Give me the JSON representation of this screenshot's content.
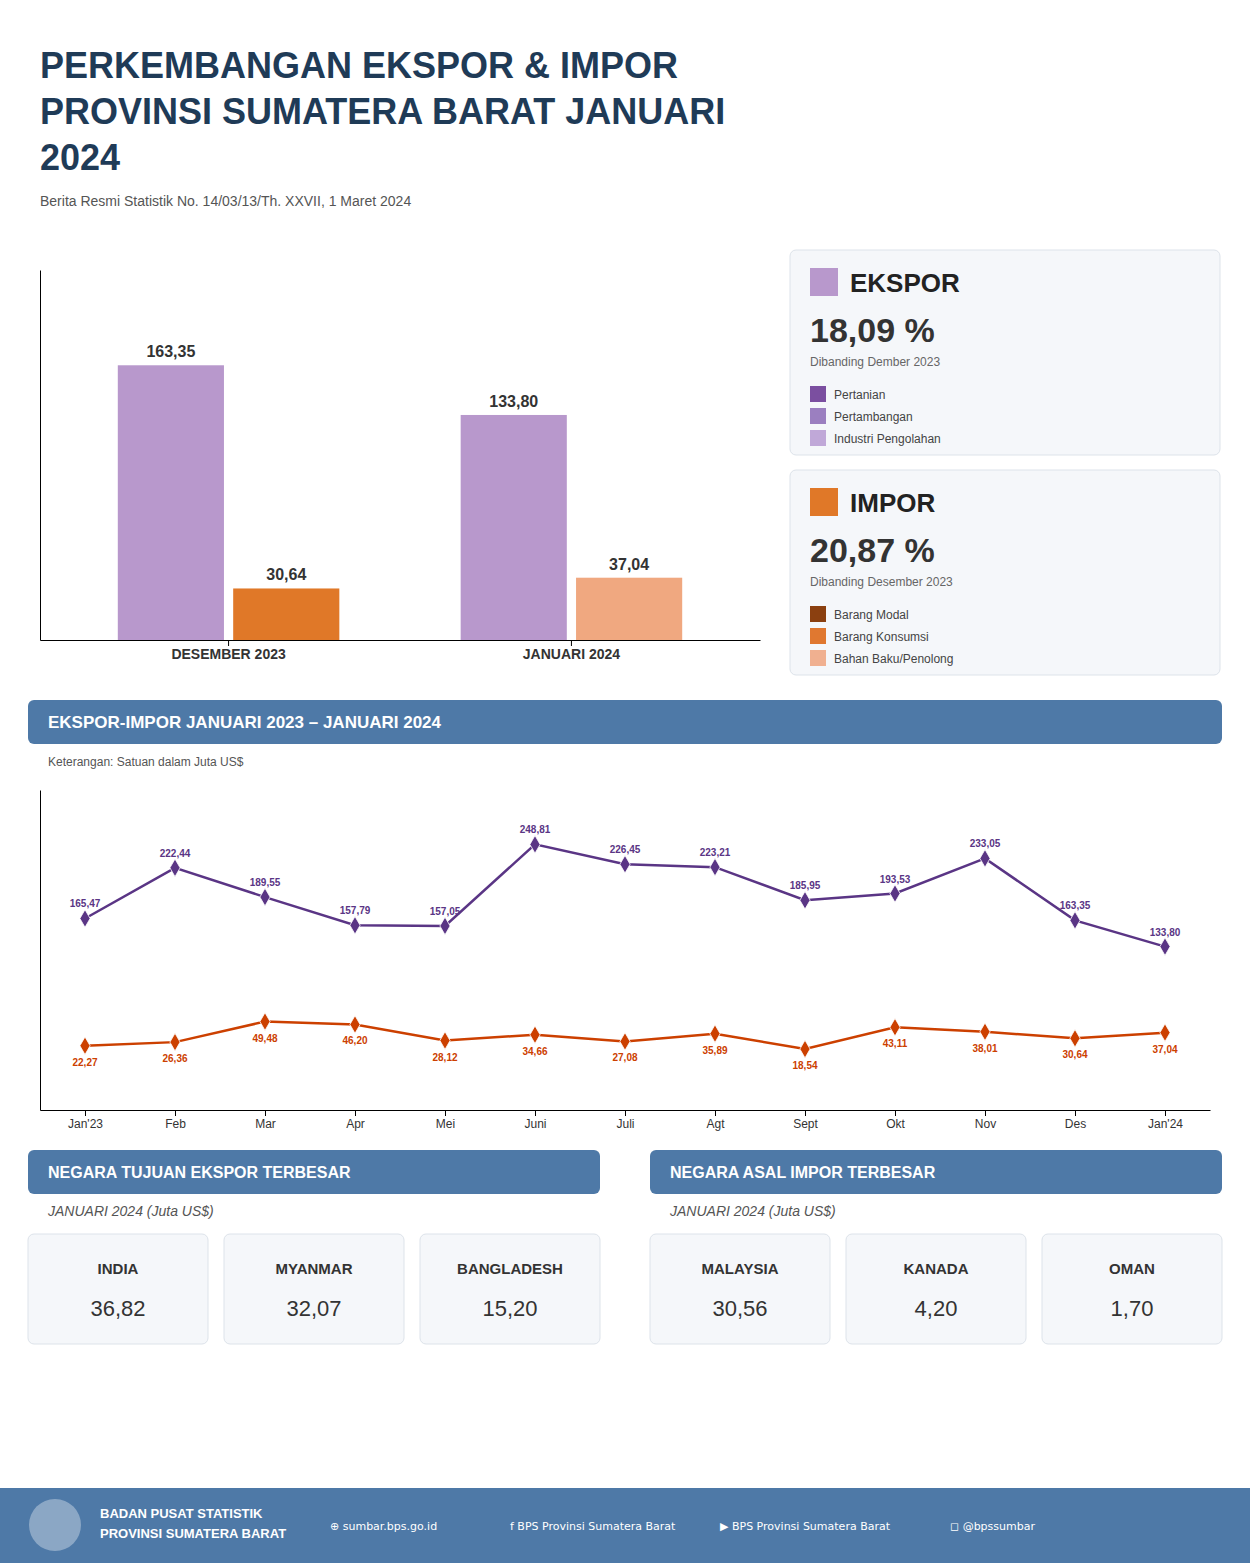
{
  "chart_data": [
    {
      "type": "bar",
      "title": "PERKEMBANGAN EKSPOR & IMPOR PROVINSI SUMATERA BARAT JANUARI 2024",
      "subtitle": "Berita Resmi Statistik No. 14/03/13/Th. XXVII, 1 Maret 2024",
      "categories": [
        "DESEMBER 2023",
        "JANUARI 2024"
      ],
      "series": [
        {
          "name": "EKSPOR",
          "color": "#b898cc",
          "values": [
            163.35,
            133.8
          ],
          "value_labels": [
            "163,35",
            "133,80"
          ]
        },
        {
          "name": "IMPOR",
          "colors": [
            "#e07828",
            "#f0a880"
          ],
          "values": [
            30.64,
            37.04
          ],
          "value_labels": [
            "30,64",
            "37,04"
          ]
        }
      ],
      "ylim": [
        0,
        220
      ],
      "tick_labels": "x",
      "data_labels": true,
      "annotations": [
        {
          "text": "18,09 %"
        },
        {
          "text": "Dibanding Dember 2023"
        },
        {
          "text": "Pertanian",
          "color": "#7b4fa0"
        },
        {
          "text": "Pertambangan",
          "color": "#9b7fc0"
        },
        {
          "text": "Industri Pengolahan",
          "color": "#c0a8d8"
        },
        {
          "text": "20,87 %"
        },
        {
          "text": "Dibanding Desember 2023"
        },
        {
          "text": "Barang Modal",
          "color": "#8b4010"
        },
        {
          "text": "Barang Konsumsi",
          "color": "#e07830"
        },
        {
          "text": "Bahan Baku/Penolong",
          "color": "#f0b090"
        }
      ]
    },
    {
      "type": "line",
      "title": "EKSPOR-IMPOR JANUARI 2023 – JANUARI 2024",
      "subtitle": "Keterangan: Satuan dalam Juta US$",
      "categories": [
        "Jan'23",
        "Feb",
        "Mar",
        "Apr",
        "Mei",
        "Juni",
        "Juli",
        "Agt",
        "Sept",
        "Okt",
        "Nov",
        "Des",
        "Jan'24"
      ],
      "series": [
        {
          "color": "#5a3585",
          "marker": "diamond",
          "values": [
            165.47,
            222.44,
            189.55,
            157.79,
            157.05,
            248.81,
            226.45,
            223.21,
            185.95,
            193.53,
            233.05,
            163.35,
            133.8
          ],
          "value_labels": [
            "165,47",
            "222,44",
            "189,55",
            "157,79",
            "157,05",
            "248,81",
            "226,45",
            "223,21",
            "185,95",
            "193,53",
            "233,05",
            "163,35",
            "133,80"
          ]
        },
        {
          "color": "#cc4000",
          "marker": "diamond",
          "values": [
            22.27,
            26.36,
            49.48,
            46.2,
            28.12,
            34.66,
            27.08,
            35.89,
            18.54,
            43.11,
            38.01,
            30.64,
            37.04
          ],
          "value_labels": [
            "22,27",
            "26,36",
            "49,48",
            "46,20",
            "28,12",
            "34,66",
            "27,08",
            "35,89",
            "18,54",
            "43,11",
            "38,01",
            "30,64",
            "37,04"
          ]
        }
      ],
      "ylim": [
        -50,
        310
      ],
      "tick_labels": "x",
      "data_labels": true
    },
    {
      "type": "table",
      "title": "NEGARA TUJUAN EKSPOR TERBESAR",
      "subtitle": "JANUARI 2024 (Juta US$)",
      "categories": [
        "INDIA",
        "MYANMAR",
        "BANGLADESH"
      ],
      "values": [
        36.82,
        32.07,
        15.2
      ],
      "value_labels": [
        "36,82",
        "32,07",
        "15,20"
      ]
    },
    {
      "type": "table",
      "title": "NEGARA ASAL IMPOR TERBESAR",
      "subtitle": "JANUARI 2024 (Juta US$)",
      "categories": [
        "MALAYSIA",
        "KANADA",
        "OMAN"
      ],
      "values": [
        30.56,
        4.2,
        1.7
      ],
      "value_labels": [
        "30,56",
        "4,20",
        "1,70"
      ]
    }
  ],
  "annotations": [
    {
      "text": "BADAN PUSAT STATISTIK"
    },
    {
      "text": "PROVINSI SUMATERA BARAT"
    },
    {
      "text": "⊕ sumbar.bps.go.id"
    },
    {
      "text": "f BPS Provinsi Sumatera Barat"
    },
    {
      "text": "▶ BPS Provinsi Sumatera Barat"
    },
    {
      "text": "◻ @bpssumbar"
    }
  ]
}
